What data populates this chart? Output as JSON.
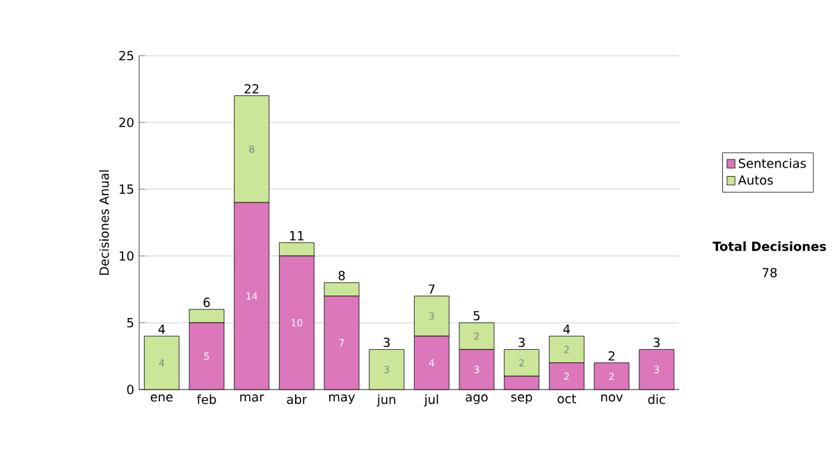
{
  "chart_data": {
    "type": "bar",
    "stacked": true,
    "ylabel": "Decisiones Anual",
    "categories": [
      "ene",
      "feb",
      "mar",
      "abr",
      "may",
      "jun",
      "jul",
      "ago",
      "sep",
      "oct",
      "nov",
      "dic"
    ],
    "series": [
      {
        "name": "Sentencias",
        "color": "#dd77bb",
        "values": [
          0,
          5,
          14,
          10,
          7,
          0,
          4,
          3,
          1,
          2,
          2,
          3
        ],
        "value_labels": [
          null,
          "5",
          "14",
          "10",
          "7",
          null,
          "4",
          "3",
          null,
          "2",
          "2",
          "3"
        ]
      },
      {
        "name": "Autos",
        "color": "#cce699",
        "values": [
          4,
          1,
          8,
          1,
          1,
          3,
          3,
          2,
          2,
          2,
          0,
          0
        ],
        "value_labels": [
          "4",
          null,
          "8",
          null,
          null,
          "3",
          "3",
          "2",
          "2",
          "2",
          null,
          null
        ]
      }
    ],
    "totals": [
      "4",
      "6",
      "22",
      "11",
      "8",
      "3",
      "7",
      "5",
      "3",
      "4",
      "2",
      "3"
    ],
    "ylim": [
      0,
      25
    ],
    "yticks": [
      0,
      5,
      10,
      15,
      20,
      25
    ],
    "grid": "y",
    "legend": "right",
    "annotations": [
      "Total Decisiones",
      "78"
    ]
  }
}
